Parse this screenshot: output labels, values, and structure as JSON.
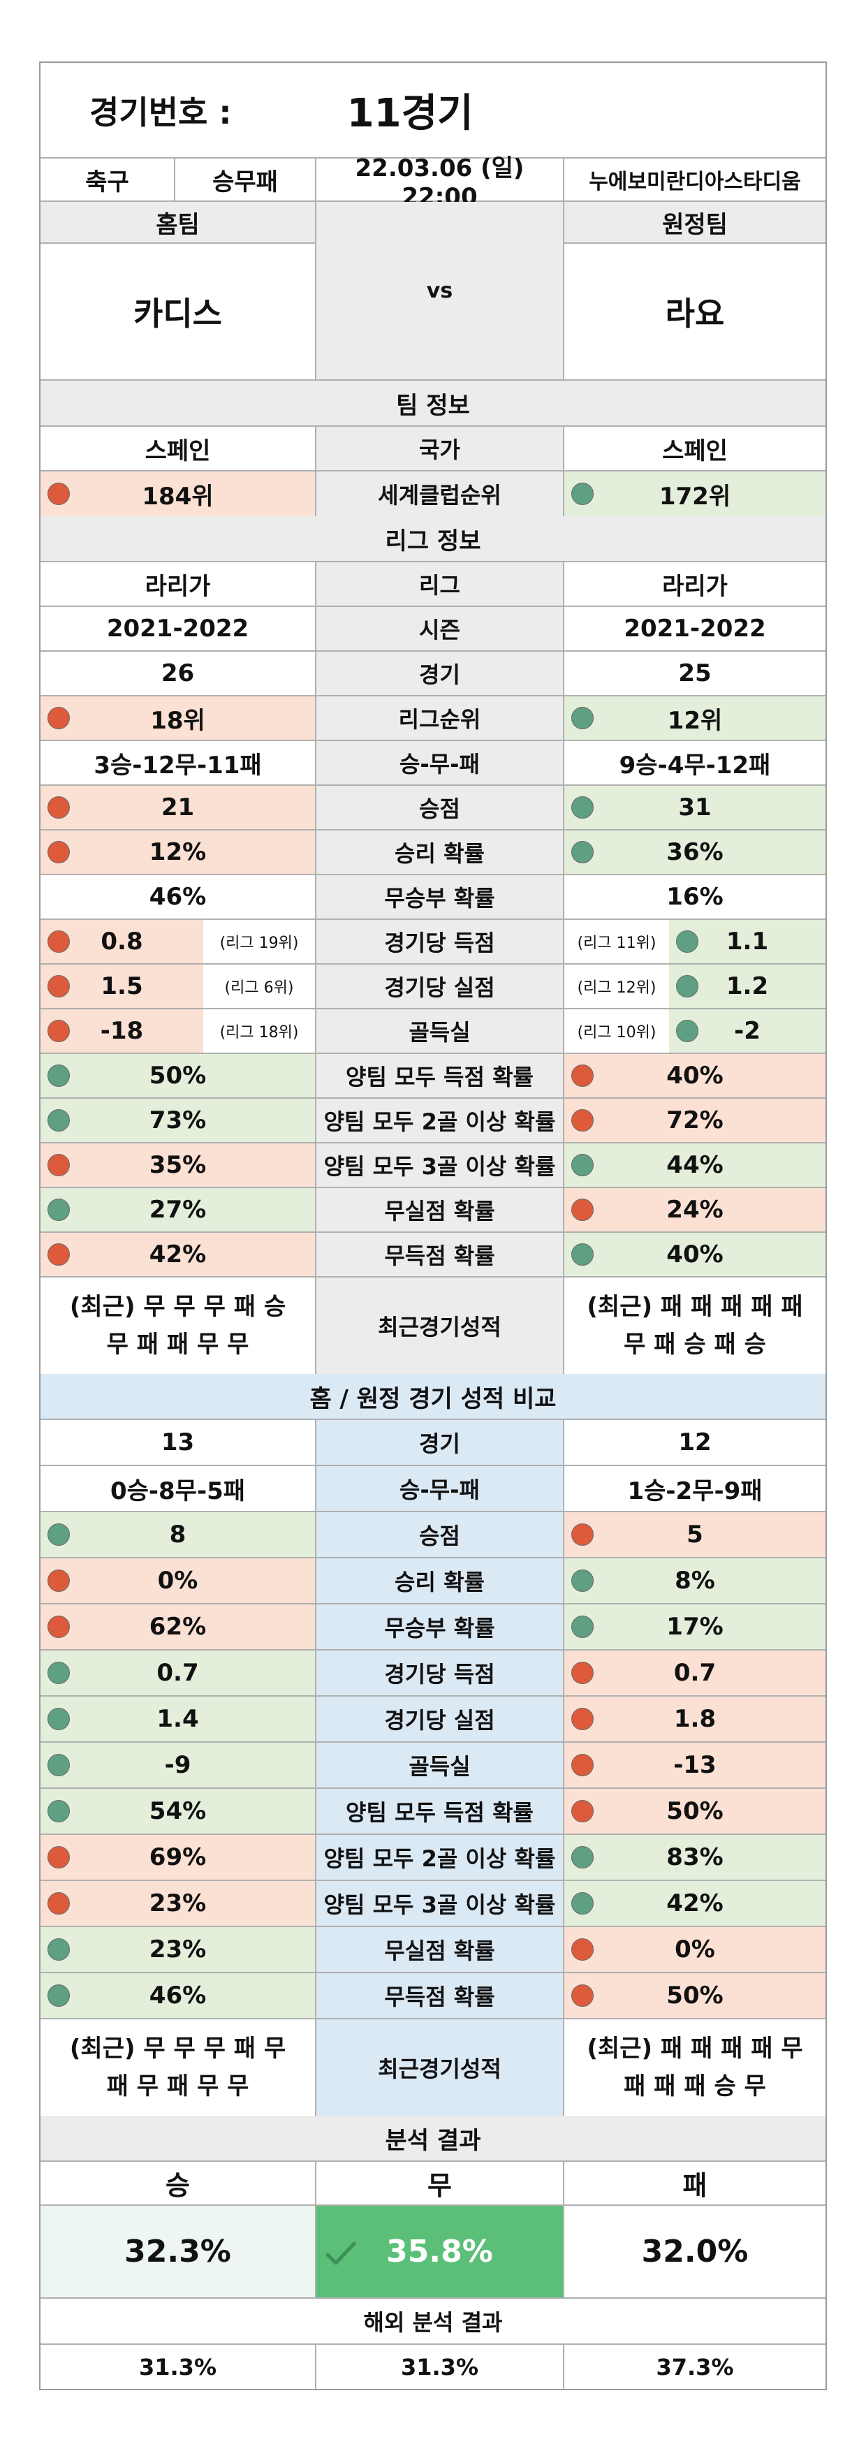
{
  "header": {
    "label": "경기번호 :",
    "game_no": "11경기",
    "sport": "축구",
    "bet_type": "승무패",
    "datetime": "22.03.06 (일) 22:00",
    "stadium": "누에보미란디아스타디움",
    "home_label": "홈팀",
    "away_label": "원정팀",
    "vs": "vs",
    "home_team": "카디스",
    "away_team": "라요"
  },
  "team_info": {
    "title": "팀 정보",
    "rows": [
      {
        "label": "국가",
        "home": "스페인",
        "away": "스페인",
        "home_color": "none",
        "away_color": "none"
      },
      {
        "label": "세계클럽순위",
        "home": "184위",
        "away": "172위",
        "home_color": "red",
        "away_color": "green"
      }
    ]
  },
  "league_info": {
    "title": "리그 정보",
    "rows": [
      {
        "label": "리그",
        "home": "라리가",
        "away": "라리가",
        "home_color": "none",
        "away_color": "none"
      },
      {
        "label": "시즌",
        "home": "2021-2022",
        "away": "2021-2022",
        "home_color": "none",
        "away_color": "none"
      },
      {
        "label": "경기",
        "home": "26",
        "away": "25",
        "home_color": "none",
        "away_color": "none"
      },
      {
        "label": "리그순위",
        "home": "18위",
        "away": "12위",
        "home_color": "red",
        "away_color": "green"
      },
      {
        "label": "승-무-패",
        "home": "3승-12무-11패",
        "away": "9승-4무-12패",
        "home_color": "none",
        "away_color": "none"
      },
      {
        "label": "승점",
        "home": "21",
        "away": "31",
        "home_color": "red",
        "away_color": "green"
      },
      {
        "label": "승리 확률",
        "home": "12%",
        "away": "36%",
        "home_color": "red",
        "away_color": "green"
      },
      {
        "label": "무승부 확률",
        "home": "46%",
        "away": "16%",
        "home_color": "none",
        "away_color": "none"
      }
    ],
    "split_rows": [
      {
        "label": "경기당 득점",
        "home": "0.8",
        "home_rank": "(리그 19위)",
        "away": "1.1",
        "away_rank": "(리그 11위)",
        "home_color": "red",
        "away_color": "green"
      },
      {
        "label": "경기당 실점",
        "home": "1.5",
        "home_rank": "(리그 6위)",
        "away": "1.2",
        "away_rank": "(리그 12위)",
        "home_color": "red",
        "away_color": "green"
      },
      {
        "label": "골득실",
        "home": "-18",
        "home_rank": "(리그 18위)",
        "away": "-2",
        "away_rank": "(리그 10위)",
        "home_color": "red",
        "away_color": "green"
      }
    ],
    "prob_rows": [
      {
        "label": "양팀 모두 득점 확률",
        "home": "50%",
        "away": "40%",
        "home_color": "green",
        "away_color": "red"
      },
      {
        "label": "양팀 모두 2골 이상 확률",
        "home": "73%",
        "away": "72%",
        "home_color": "green",
        "away_color": "red"
      },
      {
        "label": "양팀 모두 3골 이상 확률",
        "home": "35%",
        "away": "44%",
        "home_color": "red",
        "away_color": "green"
      },
      {
        "label": "무실점 확률",
        "home": "27%",
        "away": "24%",
        "home_color": "green",
        "away_color": "red"
      },
      {
        "label": "무득점 확률",
        "home": "42%",
        "away": "40%",
        "home_color": "red",
        "away_color": "green"
      }
    ],
    "recent": {
      "label": "최근경기성적",
      "home_line1": "(최근) 무 무 무 패 승",
      "home_line2": "무 패 패 무 무",
      "away_line1": "(최근) 패 패 패 패 패",
      "away_line2": "무 패 승 패 승"
    }
  },
  "home_away": {
    "title": "홈 / 원정 경기 성적 비교",
    "rows": [
      {
        "label": "경기",
        "home": "13",
        "away": "12",
        "home_color": "none",
        "away_color": "none"
      },
      {
        "label": "승-무-패",
        "home": "0승-8무-5패",
        "away": "1승-2무-9패",
        "home_color": "none",
        "away_color": "none"
      },
      {
        "label": "승점",
        "home": "8",
        "away": "5",
        "home_color": "green",
        "away_color": "red"
      },
      {
        "label": "승리 확률",
        "home": "0%",
        "away": "8%",
        "home_color": "red",
        "away_color": "green"
      },
      {
        "label": "무승부 확률",
        "home": "62%",
        "away": "17%",
        "home_color": "red",
        "away_color": "green"
      },
      {
        "label": "경기당 득점",
        "home": "0.7",
        "away": "0.7",
        "home_color": "green",
        "away_color": "red"
      },
      {
        "label": "경기당 실점",
        "home": "1.4",
        "away": "1.8",
        "home_color": "green",
        "away_color": "red"
      },
      {
        "label": "골득실",
        "home": "-9",
        "away": "-13",
        "home_color": "green",
        "away_color": "red"
      },
      {
        "label": "양팀 모두 득점 확률",
        "home": "54%",
        "away": "50%",
        "home_color": "green",
        "away_color": "red"
      },
      {
        "label": "양팀 모두 2골 이상 확률",
        "home": "69%",
        "away": "83%",
        "home_color": "red",
        "away_color": "green"
      },
      {
        "label": "양팀 모두 3골 이상 확률",
        "home": "23%",
        "away": "42%",
        "home_color": "red",
        "away_color": "green"
      },
      {
        "label": "무실점 확률",
        "home": "23%",
        "away": "0%",
        "home_color": "green",
        "away_color": "red"
      },
      {
        "label": "무득점 확률",
        "home": "46%",
        "away": "50%",
        "home_color": "green",
        "away_color": "red"
      }
    ],
    "recent": {
      "label": "최근경기성적",
      "home_line1": "(최근) 무 무 무 패 무",
      "home_line2": "패 무 패 무 무",
      "away_line1": "(최근) 패 패 패 패 무",
      "away_line2": "패 패 패 승 무"
    }
  },
  "result": {
    "title": "분석 결과",
    "win_label": "승",
    "draw_label": "무",
    "loss_label": "패",
    "win": "32.3%",
    "draw": "35.8%",
    "loss": "32.0%",
    "overseas_title": "해외 분석 결과",
    "o_win": "31.3%",
    "o_draw": "31.3%",
    "o_loss": "37.3%"
  },
  "colors": {
    "red_bg": "#fbe0d4",
    "green_bg": "#e3efda",
    "red_dot": "#dd5b3a",
    "green_dot": "#5f9f82",
    "highlight": "#5cbf78",
    "section_gray": "#ececec",
    "section_blue": "#dbe9f5"
  },
  "icons": {
    "highlight_mark": "check-icon"
  }
}
